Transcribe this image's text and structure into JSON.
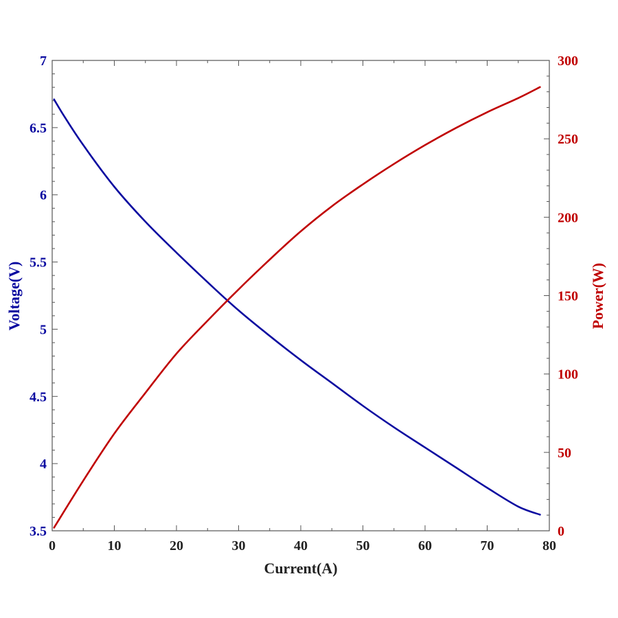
{
  "chart_data": {
    "type": "line",
    "title": "",
    "xlabel": "Current(A)",
    "ylabel_left": "Voltage(V)",
    "ylabel_right": "Power(W)",
    "xlim": [
      0,
      80
    ],
    "ylim_left": [
      3.5,
      7
    ],
    "ylim_right": [
      0,
      300
    ],
    "x_ticks": [
      "0",
      "10",
      "20",
      "30",
      "40",
      "50",
      "60",
      "70",
      "80"
    ],
    "y_left_ticks": [
      "3.5",
      "4",
      "4.5",
      "5",
      "5.5",
      "6",
      "6.5",
      "7"
    ],
    "y_right_ticks": [
      "0",
      "50",
      "100",
      "150",
      "200",
      "250",
      "300"
    ],
    "grid": false,
    "colors": {
      "voltage": "#0a0aa0",
      "power": "#c00000",
      "axis": "#000000"
    },
    "series": [
      {
        "axis": "left",
        "color": "#0a0aa0",
        "x": [
          0.3,
          2,
          5,
          10,
          15,
          20,
          25,
          30,
          35,
          40,
          45,
          50,
          55,
          60,
          65,
          70,
          75,
          78.5
        ],
        "values": [
          6.71,
          6.58,
          6.37,
          6.06,
          5.8,
          5.57,
          5.35,
          5.14,
          4.95,
          4.77,
          4.6,
          4.43,
          4.27,
          4.12,
          3.97,
          3.82,
          3.68,
          3.62
        ]
      },
      {
        "axis": "right",
        "color": "#c00000",
        "x": [
          0.3,
          5,
          10,
          15,
          20,
          25,
          30,
          35,
          40,
          45,
          50,
          55,
          60,
          65,
          70,
          75,
          78.5
        ],
        "values": [
          2,
          32,
          62,
          88,
          113,
          134,
          154,
          173,
          191,
          207,
          221,
          234,
          246,
          257,
          267,
          276,
          283
        ]
      }
    ]
  }
}
